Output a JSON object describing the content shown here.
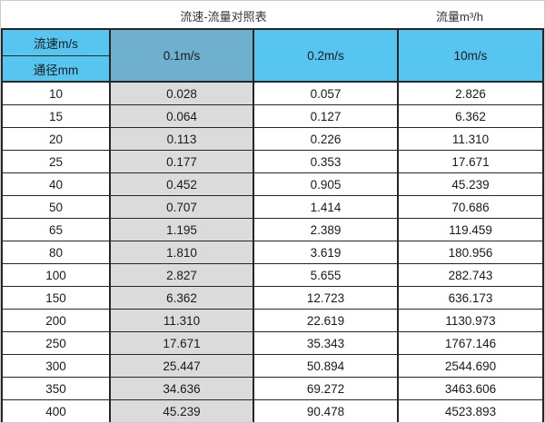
{
  "chart_data": {
    "type": "table",
    "title": "流速-流量对照表",
    "unit_label": "流量m³/h",
    "corner": {
      "top": "流速m/s",
      "bottom": "通径mm"
    },
    "columns": [
      "0.1m/s",
      "0.2m/s",
      "10m/s"
    ],
    "rows": [
      [
        "10",
        "0.028",
        "0.057",
        "2.826"
      ],
      [
        "15",
        "0.064",
        "0.127",
        "6.362"
      ],
      [
        "20",
        "0.113",
        "0.226",
        "11.310"
      ],
      [
        "25",
        "0.177",
        "0.353",
        "17.671"
      ],
      [
        "40",
        "0.452",
        "0.905",
        "45.239"
      ],
      [
        "50",
        "0.707",
        "1.414",
        "70.686"
      ],
      [
        "65",
        "1.195",
        "2.389",
        "119.459"
      ],
      [
        "80",
        "1.810",
        "3.619",
        "180.956"
      ],
      [
        "100",
        "2.827",
        "5.655",
        "282.743"
      ],
      [
        "150",
        "6.362",
        "12.723",
        "636.173"
      ],
      [
        "200",
        "11.310",
        "22.619",
        "1130.973"
      ],
      [
        "250",
        "17.671",
        "35.343",
        "1767.146"
      ],
      [
        "300",
        "25.447",
        "50.894",
        "2544.690"
      ],
      [
        "350",
        "34.636",
        "69.272",
        "3463.606"
      ],
      [
        "400",
        "45.239",
        "90.478",
        "4523.893"
      ]
    ]
  },
  "colors": {
    "header_blue": "#56C5F0",
    "header_blue_dark": "#6FB0CE",
    "first_col_gray": "#DBDBDB",
    "border_dark": "#262626",
    "text_dark": "#1A1A1A"
  }
}
